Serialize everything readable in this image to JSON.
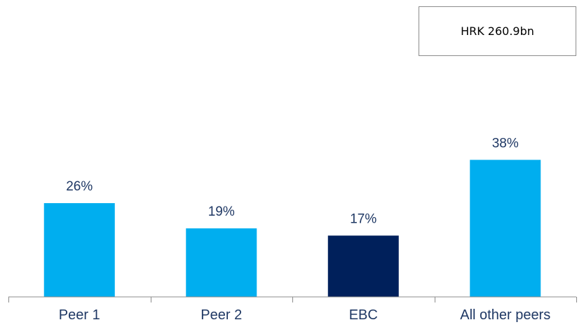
{
  "total_box": {
    "text": "HRK 260.9bn"
  },
  "chart_data": {
    "type": "bar",
    "categories": [
      "Peer 1",
      "Peer 2",
      "EBC",
      "All other peers"
    ],
    "values": [
      26,
      19,
      17,
      38
    ],
    "data_labels": [
      "26%",
      "19%",
      "17%",
      "38%"
    ],
    "unit": "%",
    "title": "",
    "xlabel": "",
    "ylabel": "",
    "ylim": [
      0,
      40
    ],
    "grid": false,
    "legend": "none",
    "colors": [
      "#00aeef",
      "#00aeef",
      "#00205b",
      "#00aeef"
    ]
  }
}
